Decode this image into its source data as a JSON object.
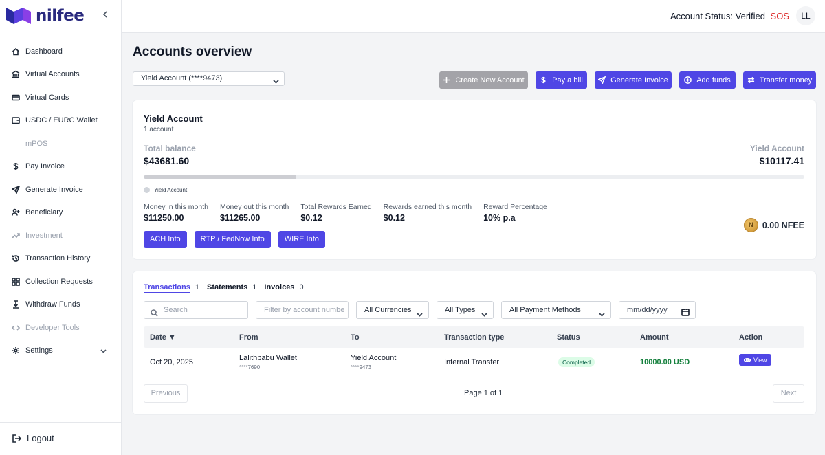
{
  "brand": {
    "name": "nilfee"
  },
  "sidebar": {
    "items": [
      {
        "label": "Dashboard",
        "icon": "home-icon",
        "disabled": false
      },
      {
        "label": "Virtual Accounts",
        "icon": "bank-icon",
        "disabled": false
      },
      {
        "label": "Virtual Cards",
        "icon": "card-icon",
        "disabled": false
      },
      {
        "label": "USDC / EURC Wallet",
        "icon": "wallet-icon",
        "disabled": false
      },
      {
        "label": "mPOS",
        "icon": "pos-icon",
        "disabled": true
      },
      {
        "label": "Pay Invoice",
        "icon": "dollar-icon",
        "disabled": false
      },
      {
        "label": "Generate Invoice",
        "icon": "send-icon",
        "disabled": false
      },
      {
        "label": "Beneficiary",
        "icon": "user-plus-icon",
        "disabled": false
      },
      {
        "label": "Investment",
        "icon": "trend-icon",
        "disabled": true
      },
      {
        "label": "Transaction History",
        "icon": "history-icon",
        "disabled": false
      },
      {
        "label": "Collection Requests",
        "icon": "grid-icon",
        "disabled": false
      },
      {
        "label": "Withdraw Funds",
        "icon": "withdraw-icon",
        "disabled": false
      },
      {
        "label": "Developer Tools",
        "icon": "code-icon",
        "disabled": true
      },
      {
        "label": "Settings",
        "icon": "gear-icon",
        "disabled": false
      }
    ],
    "logout_label": "Logout"
  },
  "header": {
    "account_status": "Account Status: Verified",
    "sos_label": "SOS",
    "avatar_initials": "LL"
  },
  "main": {
    "title": "Accounts overview",
    "account_select_value": "Yield Account (****9473)",
    "actions": {
      "create": "Create New Account",
      "pay_bill": "Pay a bill",
      "generate_invoice": "Generate Invoice",
      "add_funds": "Add funds",
      "transfer": "Transfer money"
    }
  },
  "account_card": {
    "title": "Yield Account",
    "subtitle": "1 account",
    "total_balance_label": "Total balance",
    "total_balance_value": "$43681.60",
    "yield_label": "Yield Account",
    "yield_value": "$10117.41",
    "progress_fraction": 0.231,
    "legend_label": "Yield Account",
    "stats": [
      {
        "label": "Money in this month",
        "value": "$11250.00"
      },
      {
        "label": "Money out this month",
        "value": "$11265.00"
      },
      {
        "label": "Total Rewards Earned",
        "value": "$0.12"
      },
      {
        "label": "Rewards earned this month",
        "value": "$0.12"
      },
      {
        "label": "Reward Percentage",
        "value": "10% p.a"
      }
    ],
    "info_buttons": {
      "ach": "ACH Info",
      "rtp": "RTP / FedNow Info",
      "wire": "WIRE Info"
    },
    "nfee_balance": "0.00 NFEE"
  },
  "transactions": {
    "tabs": [
      {
        "label": "Transactions",
        "count": "1",
        "active": true
      },
      {
        "label": "Statements",
        "count": "1",
        "active": false
      },
      {
        "label": "Invoices",
        "count": "0",
        "active": false
      }
    ],
    "filters": {
      "search_placeholder": "Search",
      "account_placeholder": "Filter by account numbe",
      "currency": "All Currencies",
      "type": "All Types",
      "payment_method": "All Payment Methods",
      "date_placeholder": "mm/dd/yyyy"
    },
    "columns": {
      "date": "Date ▼",
      "from": "From",
      "to": "To",
      "type": "Transaction type",
      "status": "Status",
      "amount": "Amount",
      "action": "Action"
    },
    "rows": [
      {
        "date": "Oct 20, 2025",
        "from": "Lalithbabu Wallet",
        "from_sub": "****7690",
        "to": "Yield Account",
        "to_sub": "****9473",
        "type": "Internal Transfer",
        "status": "Completed",
        "amount": "10000.00 USD",
        "action": "View"
      }
    ],
    "pagination": {
      "prev": "Previous",
      "page": "Page 1 of 1",
      "next": "Next"
    }
  }
}
